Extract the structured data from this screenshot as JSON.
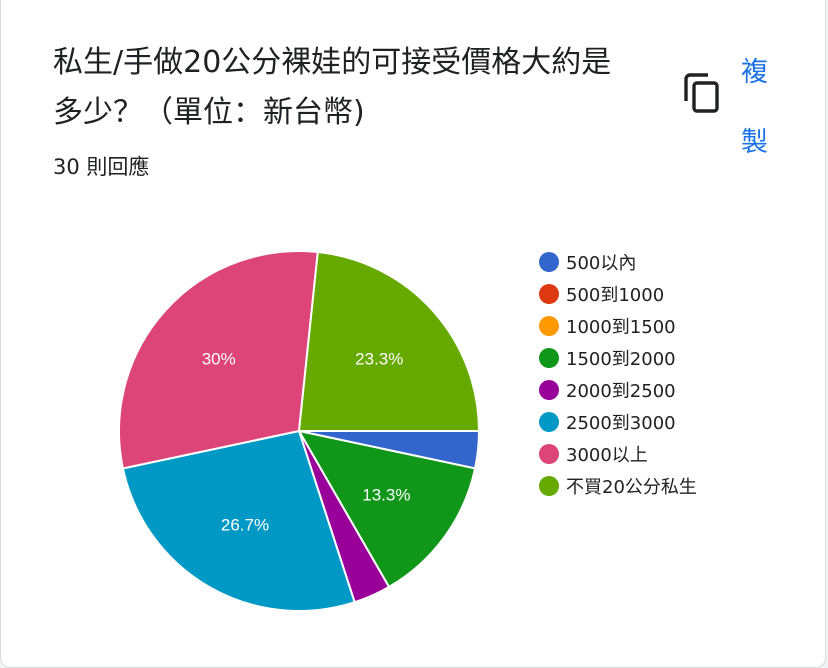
{
  "question": {
    "title": "私生/手做20公分裸娃的可接受價格大約是多少？（單位：新台幣)",
    "response_count": "30 則回應",
    "copy_label": "複製"
  },
  "icons": {
    "copy": "copy-icon"
  },
  "chart_data": {
    "type": "pie",
    "title": "",
    "categories": [
      "500以內",
      "500到1000",
      "1000到1500",
      "1500到2000",
      "2000到2500",
      "2500到3000",
      "3000以上",
      "不買20公分私生"
    ],
    "values": [
      1,
      0,
      0,
      4,
      1,
      8,
      9,
      7
    ],
    "percent_labels": [
      "",
      "",
      "",
      "13.3%",
      "",
      "26.7%",
      "30%",
      "23.3%"
    ],
    "colors": [
      "#3366cc",
      "#dc3912",
      "#ff9900",
      "#109618",
      "#990099",
      "#0099c6",
      "#dd4477",
      "#66aa00"
    ],
    "legend_placement": "right",
    "start_angle_deg": 90,
    "direction": "clockwise"
  }
}
